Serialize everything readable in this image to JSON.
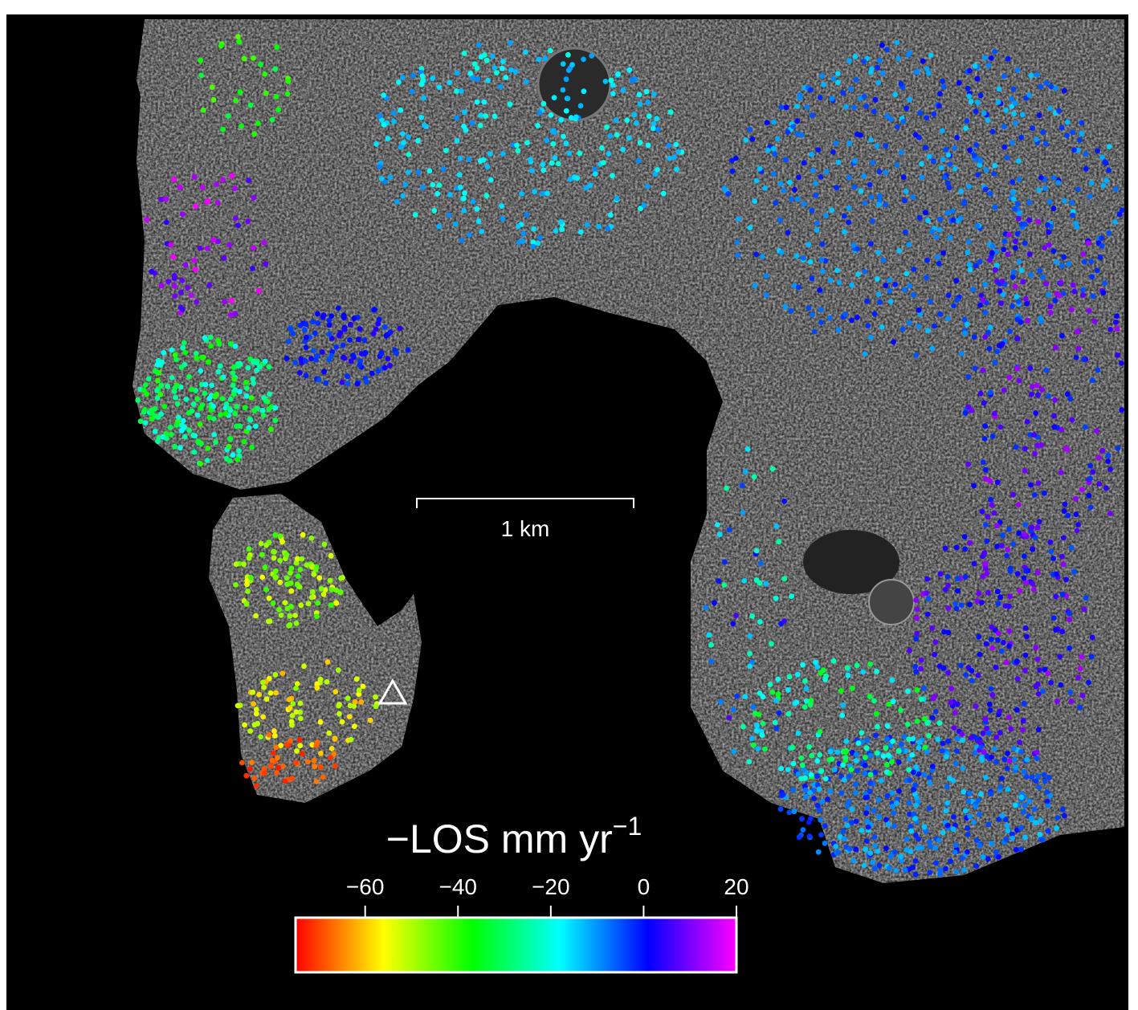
{
  "map": {
    "scale_bar": {
      "label": "1 km"
    },
    "colorbar": {
      "title": "−LOS mm yr",
      "title_superscript": "−1",
      "lim": [
        -75,
        20
      ],
      "ticks": [
        {
          "value": -60,
          "label": "−60"
        },
        {
          "value": -40,
          "label": "−40"
        },
        {
          "value": -20,
          "label": "−20"
        },
        0,
        20
      ]
    }
  }
}
